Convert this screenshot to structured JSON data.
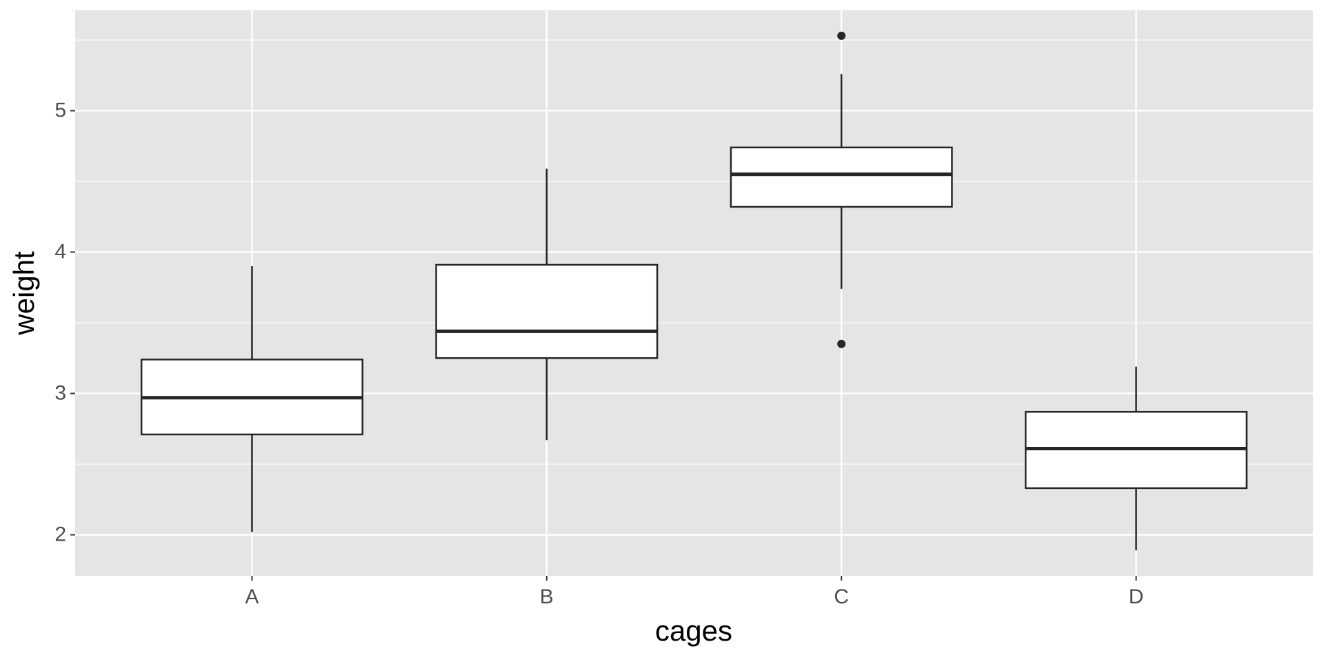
{
  "chart_data": {
    "type": "box",
    "x_label": "cages",
    "y_label": "weight",
    "categories": [
      "A",
      "B",
      "C",
      "D"
    ],
    "whisker_low": [
      2.02,
      2.67,
      3.74,
      1.89
    ],
    "q1": [
      2.71,
      3.25,
      4.32,
      2.33
    ],
    "median": [
      2.97,
      3.44,
      4.55,
      2.61
    ],
    "q3": [
      3.24,
      3.91,
      4.74,
      2.87
    ],
    "whisker_high": [
      3.9,
      4.59,
      5.26,
      3.19
    ],
    "outliers": [
      [],
      [],
      [
        5.53,
        3.35
      ],
      []
    ],
    "box_color": "#ffffff",
    "line_color": "#262626",
    "ylim": [
      1.71,
      5.71
    ],
    "yticks": [
      2,
      3,
      4,
      5
    ],
    "minor_yticks": [
      2.5,
      3.5,
      4.5,
      5.5
    ],
    "grid": true,
    "panel_color": "#e5e5e5"
  }
}
